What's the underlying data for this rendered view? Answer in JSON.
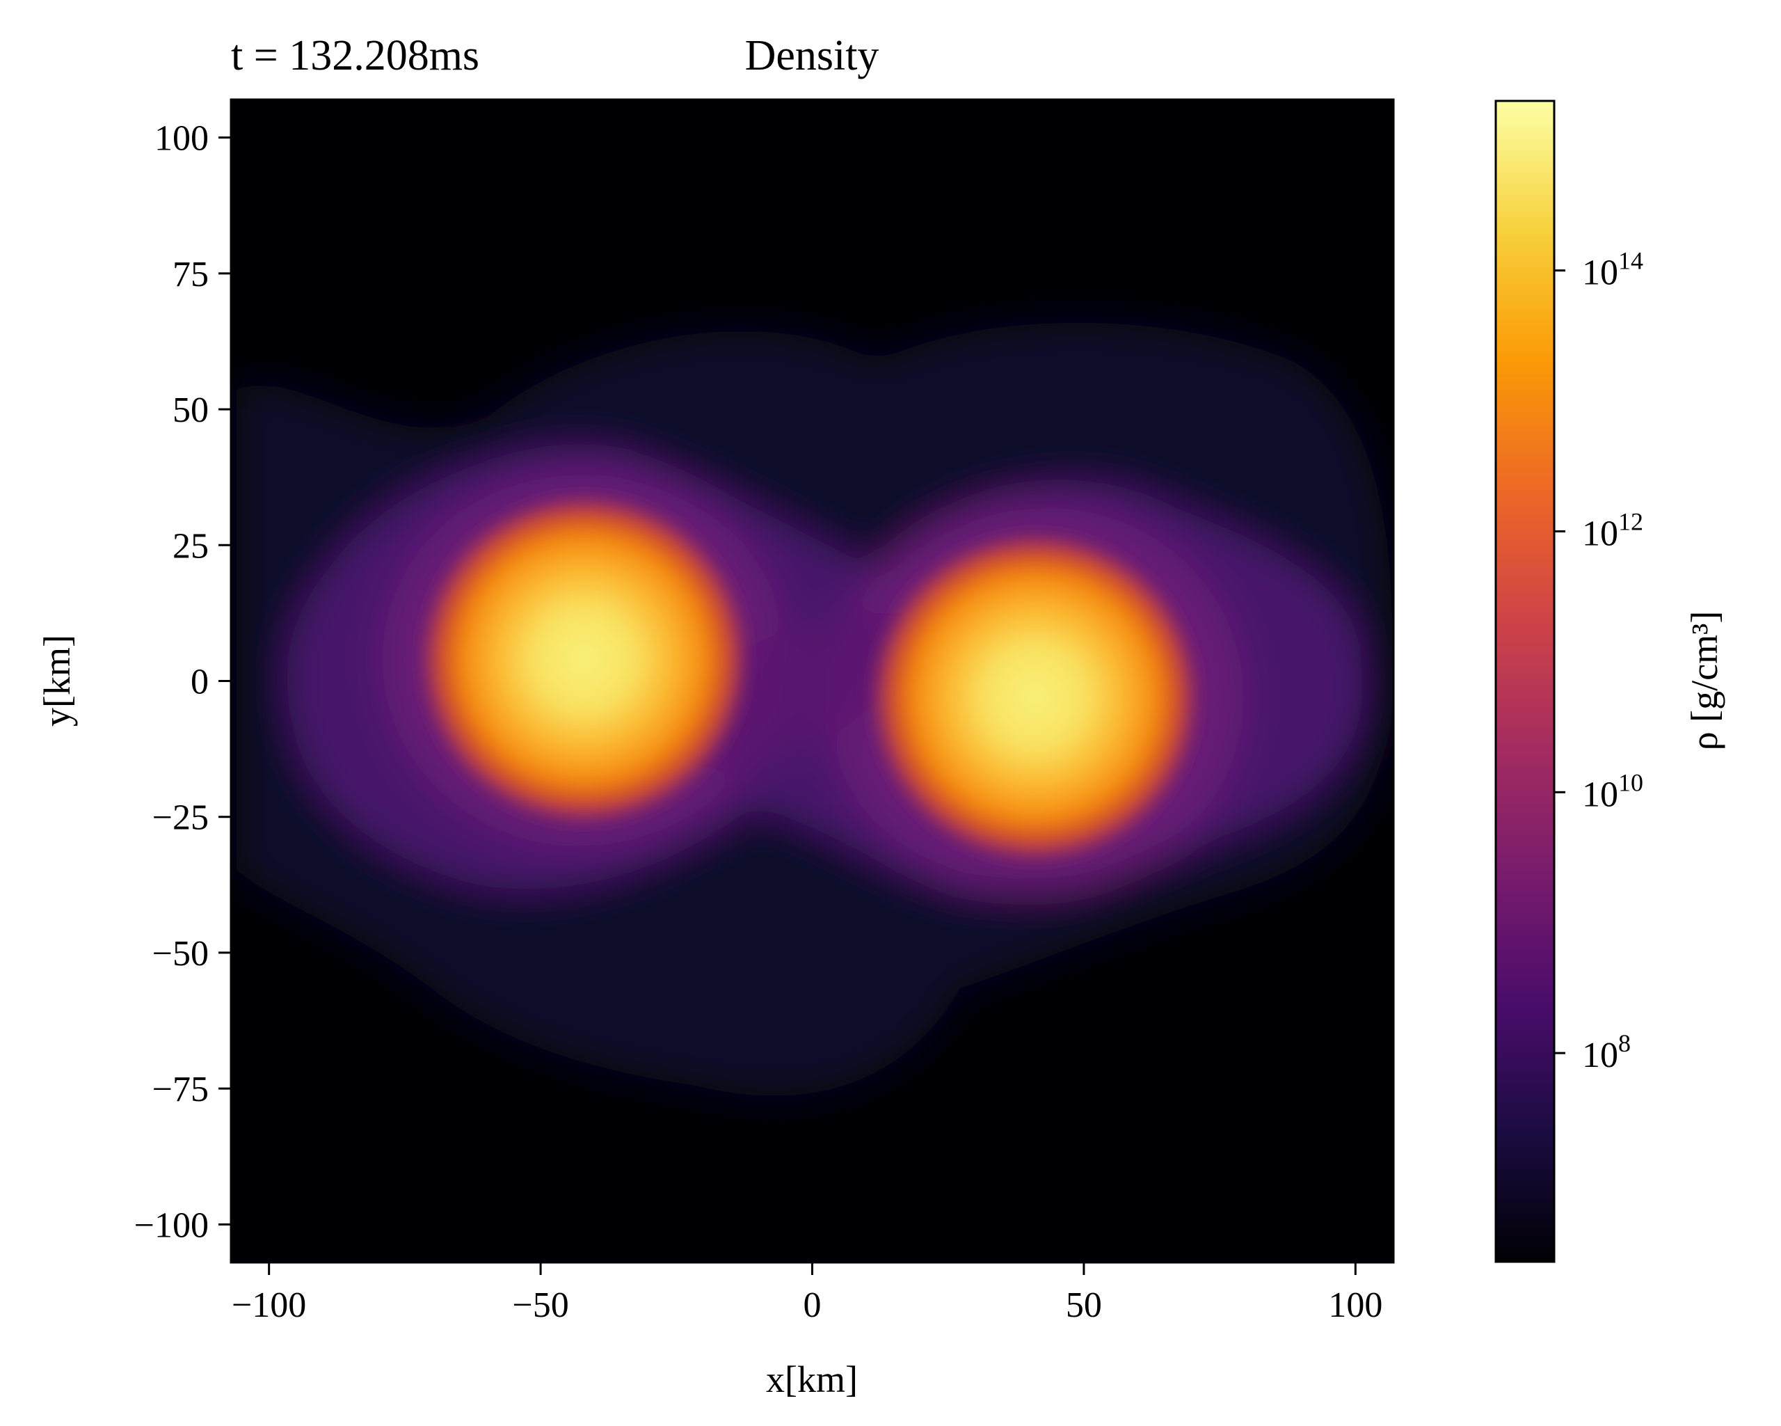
{
  "chart_data": {
    "type": "heatmap",
    "title": "Density",
    "time_label": "t = 132.208ms",
    "xlabel": "x[km]",
    "ylabel": "y[km]",
    "colorbar_label": "ρ [g/cm³]",
    "colormap": "inferno",
    "color_scale": "log",
    "xlim": [
      -107,
      107
    ],
    "ylim": [
      -107,
      107
    ],
    "x_ticks": [
      -100,
      -50,
      0,
      50,
      100
    ],
    "x_tick_labels": [
      "−100",
      "−50",
      "0",
      "50",
      "100"
    ],
    "y_ticks": [
      100,
      75,
      50,
      25,
      0,
      -25,
      -50,
      -75,
      -100
    ],
    "y_tick_labels": [
      "100",
      "75",
      "50",
      "25",
      "0",
      "−25",
      "−50",
      "−75",
      "−100"
    ],
    "colorbar_range_log10": [
      6.4,
      15.3
    ],
    "colorbar_ticks": [
      {
        "log10": 14,
        "base": "10",
        "exp": "14"
      },
      {
        "log10": 12,
        "base": "10",
        "exp": "12"
      },
      {
        "log10": 10,
        "base": "10",
        "exp": "10"
      },
      {
        "log10": 8,
        "base": "10",
        "exp": "8"
      }
    ],
    "cores": [
      {
        "x_km": -42,
        "y_km": 4,
        "peak_log10_density": 15.0
      },
      {
        "x_km": 41,
        "y_km": -3,
        "peak_log10_density": 15.0
      }
    ],
    "grid": false
  },
  "colors": {
    "background": "#ffffff",
    "colormap_stops": [
      "#000004",
      "#1b0c41",
      "#4a0c6b",
      "#781c6d",
      "#a52c60",
      "#cf4446",
      "#ed6925",
      "#fb9b06",
      "#f7d13d",
      "#fcffa4"
    ]
  }
}
